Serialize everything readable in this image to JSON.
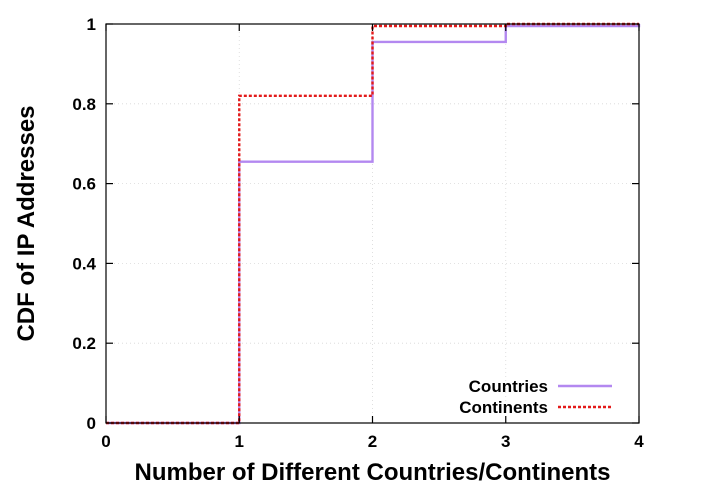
{
  "chart_data": {
    "type": "line",
    "step": true,
    "xlabel": "Number of Different Countries/Continents",
    "ylabel": "CDF of IP Addresses",
    "xlim": [
      0,
      4
    ],
    "ylim": [
      0,
      1
    ],
    "xticks": [
      "0",
      "1",
      "2",
      "3",
      "4"
    ],
    "yticks": [
      "0",
      "0.2",
      "0.4",
      "0.6",
      "0.8",
      "1"
    ],
    "grid": true,
    "legend_position": "bottom-right",
    "series": [
      {
        "name": "Countries",
        "color": "#b388f0",
        "dash": "solid",
        "x": [
          0,
          1,
          2,
          3,
          4
        ],
        "y": [
          0,
          0.655,
          0.955,
          0.995,
          1.0
        ]
      },
      {
        "name": "Continents",
        "color": "#e31a1a",
        "dash": "dotted",
        "x": [
          0,
          1,
          2,
          3,
          4
        ],
        "y": [
          0,
          0.82,
          0.995,
          1.0,
          1.0
        ]
      }
    ]
  }
}
